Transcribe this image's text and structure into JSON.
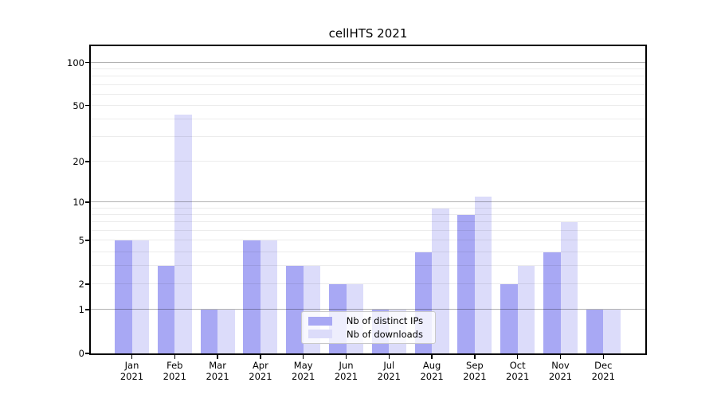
{
  "title": "cellHTS 2021",
  "chart_data": {
    "type": "bar",
    "title": "cellHTS 2021",
    "categories": [
      "Jan",
      "Feb",
      "Mar",
      "Apr",
      "May",
      "Jun",
      "Jul",
      "Aug",
      "Sep",
      "Oct",
      "Nov",
      "Dec"
    ],
    "x_year": "2021",
    "series": [
      {
        "name": "Nb of distinct IPs",
        "color": "#a8a8f4",
        "values": [
          5,
          3,
          1,
          5,
          3,
          2,
          1,
          4,
          8,
          2,
          4,
          1
        ]
      },
      {
        "name": "Nb of downloads",
        "color": "#dcdcfa",
        "values": [
          5,
          43,
          1,
          5,
          3,
          2,
          1,
          9,
          11,
          3,
          7,
          1
        ]
      }
    ],
    "xlabel": "",
    "ylabel": "",
    "yscale": "log1p",
    "ylim": [
      0,
      130
    ],
    "y_ticks": [
      0,
      1,
      2,
      5,
      10,
      20,
      50,
      100
    ],
    "y_major_gridlines": [
      1,
      10,
      100
    ],
    "y_minor_gridlines": [
      2,
      3,
      4,
      5,
      6,
      7,
      8,
      9,
      20,
      30,
      40,
      50,
      60,
      70,
      80,
      90
    ],
    "grid": true,
    "legend_position": "lower center"
  },
  "colors": {
    "axis": "#000000",
    "text": "#000000",
    "major_grid": "#b3b3b3",
    "minor_grid": "#ebebeb",
    "legend_border": "#c9c9c9",
    "background": "#ffffff"
  }
}
